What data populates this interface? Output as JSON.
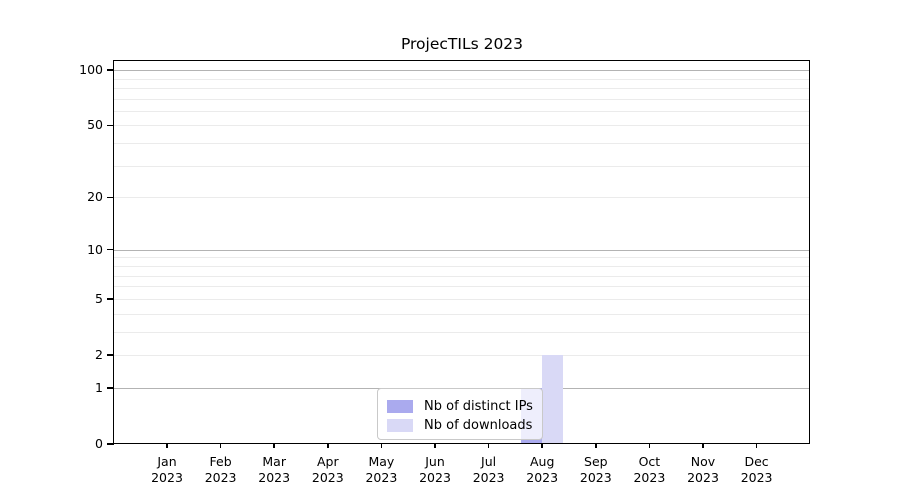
{
  "chart_data": {
    "type": "bar",
    "title": "ProjecTILs 2023",
    "categories": [
      "Jan 2023",
      "Feb 2023",
      "Mar 2023",
      "Apr 2023",
      "May 2023",
      "Jun 2023",
      "Jul 2023",
      "Aug 2023",
      "Sep 2023",
      "Oct 2023",
      "Nov 2023",
      "Dec 2023"
    ],
    "x_tick_line1": [
      "Jan",
      "Feb",
      "Mar",
      "Apr",
      "May",
      "Jun",
      "Jul",
      "Aug",
      "Sep",
      "Oct",
      "Nov",
      "Dec"
    ],
    "x_tick_line2": "2023",
    "series": [
      {
        "name": "Nb of distinct IPs",
        "color": "#aaaaee",
        "values": [
          0,
          0,
          0,
          0,
          0,
          0,
          0,
          1,
          0,
          0,
          0,
          0
        ]
      },
      {
        "name": "Nb of downloads",
        "color": "#d9d9f6",
        "values": [
          0,
          0,
          0,
          0,
          0,
          0,
          0,
          2,
          0,
          0,
          0,
          0
        ]
      }
    ],
    "xlabel": "",
    "ylabel": "",
    "yscale": "log1p",
    "ylim": [
      0,
      112
    ],
    "yticks": [
      0,
      1,
      2,
      5,
      10,
      20,
      50,
      100
    ],
    "major_gridlines": [
      1,
      10,
      100
    ],
    "minor_gridlines": [
      2,
      3,
      4,
      5,
      6,
      7,
      8,
      9,
      20,
      30,
      40,
      50,
      60,
      70,
      80,
      90
    ],
    "grid": true,
    "legend_position": "inside lower center",
    "colors": {
      "major_grid": "#b3b3b3",
      "minor_grid": "#ebebeb",
      "axis": "#000000",
      "background": "#ffffff"
    }
  }
}
